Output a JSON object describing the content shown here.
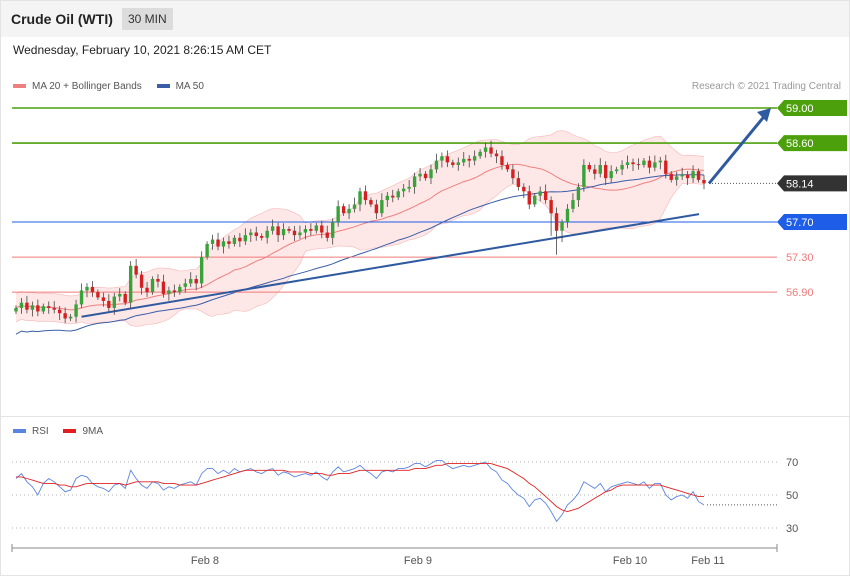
{
  "header": {
    "title": "Crude Oil (WTI)",
    "interval": "30 MIN",
    "datetime": "Wednesday, February 10, 2021 8:26:15 AM CET"
  },
  "legend": {
    "ma20_label": "MA 20 + Bollinger Bands",
    "ma50_label": "MA 50",
    "credit": "Research © 2021 Trading Central",
    "rsi_label": "RSI",
    "rsi_ma_label": "9MA"
  },
  "colors": {
    "bull": "#3aa23a",
    "bear": "#d42020",
    "ma20": "#f08080",
    "band_fill": "#fde3e3",
    "ma50": "#3a5da8",
    "resistance": "#4ca00c",
    "pivot": "#1e5de8",
    "support": "#f07a7a",
    "current": "#333333",
    "trendline": "#2f5aa0",
    "rsi": "#5b84e0",
    "rsi_ma": "#e02020"
  },
  "chart_data": [
    {
      "type": "candlestick",
      "title": "Crude Oil (WTI)",
      "timeframe": "30 MIN",
      "x_ticks": [
        "Feb 8",
        "Feb 9",
        "Feb 10",
        "Feb 11"
      ],
      "ylim": [
        55.9,
        59.3
      ],
      "levels": [
        {
          "label": "59.00",
          "value": 59.0,
          "kind": "resistance"
        },
        {
          "label": "58.60",
          "value": 58.6,
          "kind": "resistance"
        },
        {
          "label": "58.14",
          "value": 58.14,
          "kind": "current"
        },
        {
          "label": "57.70",
          "value": 57.7,
          "kind": "pivot"
        },
        {
          "label": "57.30",
          "value": 57.3,
          "kind": "support"
        },
        {
          "label": "56.90",
          "value": 56.9,
          "kind": "support"
        }
      ],
      "indicators": [
        "MA 20 + Bollinger Bands",
        "MA 50"
      ],
      "closes": [
        56.72,
        56.78,
        56.7,
        56.75,
        56.68,
        56.74,
        56.72,
        56.7,
        56.66,
        56.6,
        56.62,
        56.76,
        56.92,
        56.96,
        56.9,
        56.84,
        56.8,
        56.72,
        56.85,
        56.88,
        56.78,
        57.2,
        57.1,
        56.95,
        56.9,
        57.05,
        57.02,
        56.88,
        56.92,
        56.9,
        56.96,
        57.0,
        57.05,
        57.0,
        57.3,
        57.45,
        57.5,
        57.42,
        57.48,
        57.45,
        57.52,
        57.48,
        57.55,
        57.58,
        57.54,
        57.52,
        57.6,
        57.65,
        57.55,
        57.62,
        57.6,
        57.55,
        57.58,
        57.62,
        57.6,
        57.66,
        57.58,
        57.52,
        57.7,
        57.88,
        57.8,
        57.85,
        57.9,
        58.05,
        57.95,
        57.9,
        57.8,
        57.95,
        58.0,
        57.98,
        58.05,
        58.08,
        58.1,
        58.22,
        58.25,
        58.2,
        58.3,
        58.4,
        58.45,
        58.38,
        58.35,
        58.38,
        58.42,
        58.4,
        58.45,
        58.5,
        58.55,
        58.48,
        58.45,
        58.35,
        58.3,
        58.2,
        58.1,
        58.05,
        57.9,
        58.0,
        58.05,
        57.95,
        57.8,
        57.6,
        57.7,
        57.85,
        57.95,
        58.1,
        58.35,
        58.3,
        58.25,
        58.35,
        58.2,
        58.28,
        58.3,
        58.35,
        58.38,
        58.36,
        58.35,
        58.4,
        58.32,
        58.38,
        58.4,
        58.25,
        58.18,
        58.22,
        58.24,
        58.2,
        58.28,
        58.18,
        58.14
      ]
    },
    {
      "type": "line",
      "title": "RSI",
      "series": [
        {
          "name": "RSI",
          "values": [
            60,
            63,
            58,
            55,
            50,
            57,
            60,
            58,
            55,
            52,
            53,
            60,
            62,
            61,
            57,
            55,
            54,
            52,
            56,
            57,
            54,
            65,
            60,
            56,
            54,
            58,
            57,
            53,
            55,
            54,
            56,
            57,
            58,
            56,
            63,
            66,
            66,
            63,
            65,
            63,
            66,
            64,
            65,
            66,
            64,
            63,
            65,
            66,
            62,
            64,
            63,
            61,
            62,
            63,
            62,
            64,
            61,
            59,
            64,
            67,
            64,
            65,
            66,
            68,
            65,
            63,
            60,
            64,
            65,
            64,
            66,
            66,
            67,
            69,
            69,
            67,
            69,
            71,
            71,
            68,
            66,
            67,
            68,
            67,
            68,
            69,
            70,
            66,
            64,
            59,
            57,
            53,
            50,
            48,
            43,
            47,
            48,
            45,
            40,
            34,
            38,
            44,
            47,
            51,
            58,
            56,
            54,
            57,
            52,
            55,
            56,
            57,
            58,
            57,
            56,
            58,
            54,
            57,
            57,
            50,
            47,
            49,
            50,
            48,
            52,
            46,
            44
          ]
        },
        {
          "name": "9MA",
          "values": [
            61,
            61,
            60,
            59,
            58,
            57,
            57,
            57,
            56,
            56,
            55,
            55,
            56,
            57,
            57,
            57,
            57,
            57,
            57,
            57,
            56,
            57,
            58,
            58,
            58,
            58,
            58,
            57,
            57,
            57,
            56,
            56,
            56,
            56,
            57,
            58,
            59,
            60,
            61,
            62,
            63,
            64,
            65,
            65,
            65,
            65,
            65,
            65,
            65,
            65,
            64,
            64,
            64,
            64,
            63,
            63,
            63,
            62,
            62,
            63,
            63,
            63,
            64,
            65,
            65,
            65,
            65,
            65,
            65,
            65,
            65,
            65,
            65,
            66,
            66,
            66,
            67,
            68,
            68,
            69,
            69,
            69,
            69,
            69,
            69,
            69,
            69,
            69,
            68,
            67,
            66,
            64,
            62,
            60,
            57,
            55,
            52,
            49,
            46,
            43,
            41,
            40,
            41,
            42,
            44,
            46,
            48,
            50,
            52,
            53,
            55,
            56,
            56,
            56,
            56,
            56,
            56,
            56,
            56,
            55,
            54,
            53,
            52,
            51,
            50,
            49,
            49
          ]
        }
      ],
      "levels": [
        70,
        50,
        30
      ]
    }
  ]
}
